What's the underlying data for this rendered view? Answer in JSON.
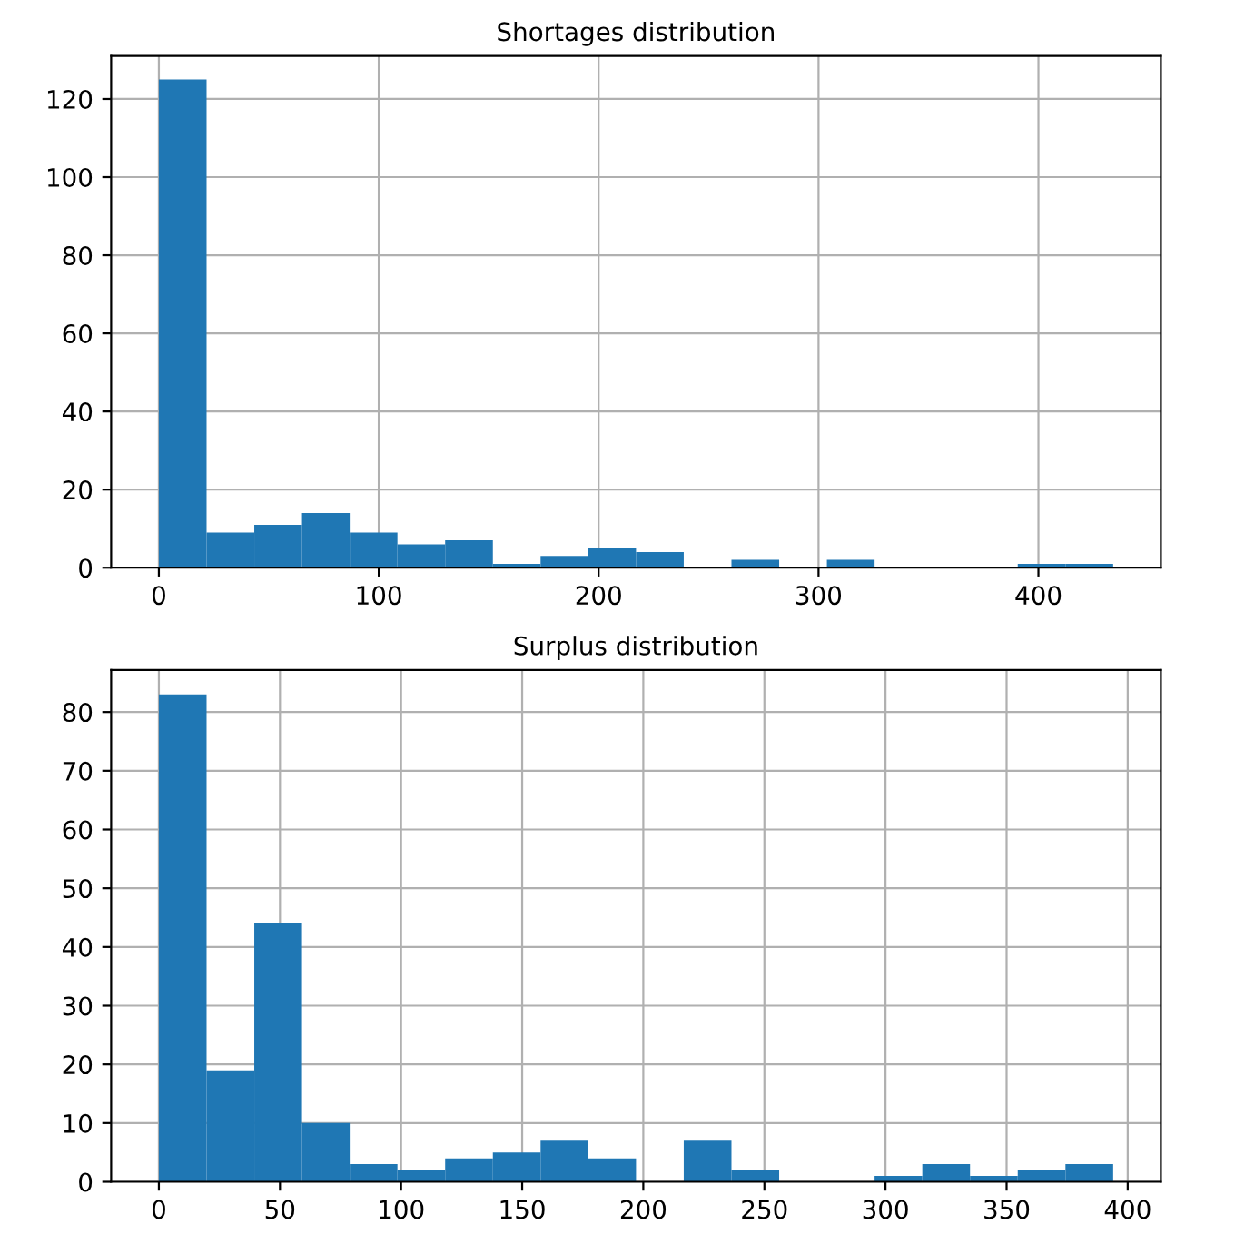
{
  "chart_data": [
    {
      "type": "histogram",
      "title": "Shortages distribution",
      "color": "#1f77b4",
      "grid": true,
      "bins": [
        0,
        21.7,
        43.4,
        65.1,
        86.8,
        108.5,
        130.2,
        151.9,
        173.6,
        195.3,
        217,
        238.7,
        260.4,
        282.1,
        303.8,
        325.5,
        347.2,
        368.9,
        390.6,
        412.3,
        434
      ],
      "values": [
        125,
        9,
        11,
        14,
        9,
        6,
        7,
        1,
        3,
        5,
        4,
        0,
        2,
        0,
        2,
        0,
        0,
        0,
        1,
        1
      ],
      "xlim": [
        -21.7,
        455.7
      ],
      "ylim": [
        0,
        131
      ],
      "xticks": [
        0,
        100,
        200,
        300,
        400
      ],
      "yticks": [
        0,
        20,
        40,
        60,
        80,
        100,
        120
      ]
    },
    {
      "type": "histogram",
      "title": "Surplus distribution",
      "color": "#1f77b4",
      "grid": true,
      "bins": [
        0,
        19.7,
        39.4,
        59.1,
        78.8,
        98.5,
        118.2,
        137.9,
        157.6,
        177.3,
        197,
        216.7,
        236.4,
        256.1,
        275.8,
        295.5,
        315.2,
        334.9,
        354.6,
        374.3,
        394
      ],
      "values": [
        83,
        19,
        44,
        10,
        3,
        2,
        4,
        5,
        7,
        4,
        0,
        7,
        2,
        0,
        0,
        1,
        3,
        1,
        2,
        3
      ],
      "xlim": [
        -19.7,
        413.7
      ],
      "ylim": [
        0,
        87.15
      ],
      "xticks": [
        0,
        50,
        100,
        150,
        200,
        250,
        300,
        350,
        400
      ],
      "yticks": [
        0,
        10,
        20,
        30,
        40,
        50,
        60,
        70,
        80
      ]
    }
  ]
}
